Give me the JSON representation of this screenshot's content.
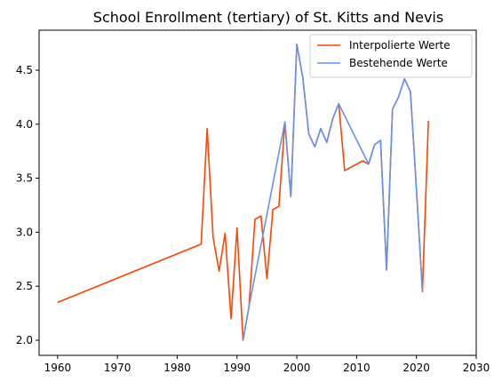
{
  "chart_data": {
    "type": "line",
    "title": "School Enrollment (tertiary) of St. Kitts and Nevis",
    "xlabel": "",
    "ylabel": "",
    "xlim": [
      1956.9,
      2030
    ],
    "ylim": [
      1.86,
      4.87
    ],
    "x_ticks": [
      1960,
      1970,
      1980,
      1990,
      2000,
      2010,
      2020,
      2030
    ],
    "y_ticks": [
      2.0,
      2.5,
      3.0,
      3.5,
      4.0,
      4.5
    ],
    "legend_position": "upper right",
    "grid": false,
    "series": [
      {
        "name": "Interpolierte Werte",
        "color": "#ff4500",
        "x": [
          1960,
          1984,
          1985,
          1986,
          1987,
          1988,
          1989,
          1990,
          1991,
          1992,
          1993,
          1994,
          1995,
          1996,
          1997,
          1998,
          1999,
          2000,
          2001,
          2002,
          2003,
          2004,
          2005,
          2006,
          2007,
          2008,
          2011,
          2012,
          2013,
          2014,
          2015,
          2016,
          2017,
          2018,
          2019,
          2020,
          2021,
          2022
        ],
        "y": [
          2.35,
          2.89,
          3.96,
          2.95,
          2.64,
          2.99,
          2.2,
          3.04,
          2.0,
          2.31,
          3.12,
          3.15,
          2.57,
          3.21,
          3.24,
          4.02,
          3.33,
          4.74,
          4.43,
          3.91,
          3.79,
          3.96,
          3.83,
          4.05,
          4.19,
          3.57,
          3.66,
          3.63,
          3.81,
          3.85,
          2.65,
          4.14,
          4.25,
          4.42,
          4.3,
          3.4,
          2.45,
          4.03
        ]
      },
      {
        "name": "Bestehende Werte",
        "color": "#6495ed",
        "x": [
          1991,
          1992,
          1998,
          1999,
          2000,
          2001,
          2002,
          2003,
          2004,
          2005,
          2006,
          2007,
          2012,
          2013,
          2014,
          2015,
          2016,
          2017,
          2018,
          2019,
          2020,
          2021
        ],
        "y": [
          2.0,
          2.31,
          4.02,
          3.33,
          4.74,
          4.43,
          3.91,
          3.79,
          3.96,
          3.83,
          4.05,
          4.19,
          3.63,
          3.81,
          3.85,
          2.65,
          4.14,
          4.25,
          4.42,
          4.3,
          3.4,
          2.45
        ]
      }
    ]
  }
}
